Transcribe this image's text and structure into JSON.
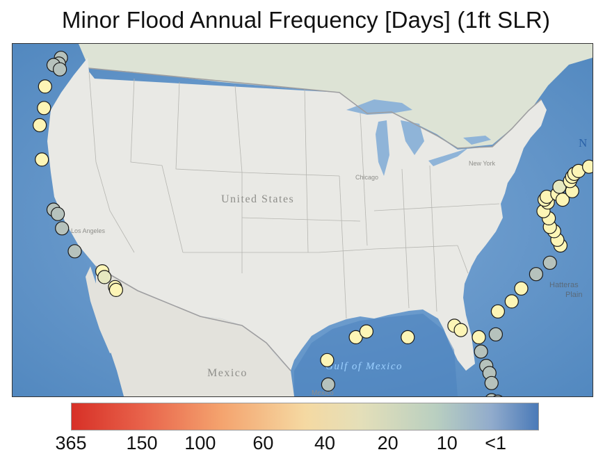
{
  "title": "Minor Flood Annual Frequency [Days] (1ft SLR)",
  "map_labels": {
    "country_us": "United States",
    "country_mx": "Mexico",
    "gulf": "Gulf of Mexico",
    "plain_1": "Hatteras",
    "plain_2": "Plain",
    "city": "Chicago",
    "ocean_letter": "N",
    "mexico_bottom": "Mexico",
    "los_angeles": "Los Angeles",
    "new_york": "New York"
  },
  "legend": {
    "ticks": [
      "365",
      "150",
      "100",
      "60",
      "40",
      "20",
      "10",
      "<1"
    ]
  },
  "colors": {
    "high": "#fdf5b6",
    "mid": "#e6e8c0",
    "low": "#b6c2bc",
    "ocean": "#5f94c9",
    "land": "#e8e8e4"
  },
  "stations": [
    {
      "lon": -122.4,
      "lat": 48.9,
      "cls": "low"
    },
    {
      "lon": -122.6,
      "lat": 48.5,
      "cls": "low"
    },
    {
      "lon": -123.1,
      "lat": 48.4,
      "cls": "low"
    },
    {
      "lon": -122.5,
      "lat": 48.1,
      "cls": "low"
    },
    {
      "lon": -123.9,
      "lat": 46.9,
      "cls": "high"
    },
    {
      "lon": -124.0,
      "lat": 45.4,
      "cls": "high"
    },
    {
      "lon": -124.4,
      "lat": 44.2,
      "cls": "high"
    },
    {
      "lon": -124.2,
      "lat": 41.8,
      "cls": "high"
    },
    {
      "lon": -123.1,
      "lat": 38.3,
      "cls": "low"
    },
    {
      "lon": -122.7,
      "lat": 38.0,
      "cls": "low"
    },
    {
      "lon": -122.3,
      "lat": 37.0,
      "cls": "low"
    },
    {
      "lon": -121.1,
      "lat": 35.4,
      "cls": "low"
    },
    {
      "lon": -118.5,
      "lat": 34.0,
      "cls": "high"
    },
    {
      "lon": -118.3,
      "lat": 33.6,
      "cls": "mid"
    },
    {
      "lon": -117.3,
      "lat": 32.9,
      "cls": "high"
    },
    {
      "lon": -117.2,
      "lat": 32.7,
      "cls": "high"
    },
    {
      "lon": -97.3,
      "lat": 27.8,
      "cls": "high"
    },
    {
      "lon": -97.2,
      "lat": 26.1,
      "cls": "low"
    },
    {
      "lon": -94.6,
      "lat": 29.4,
      "cls": "high"
    },
    {
      "lon": -93.6,
      "lat": 29.8,
      "cls": "high"
    },
    {
      "lon": -89.7,
      "lat": 29.4,
      "cls": "high"
    },
    {
      "lon": -85.3,
      "lat": 30.2,
      "cls": "high"
    },
    {
      "lon": -84.7,
      "lat": 29.9,
      "cls": "high"
    },
    {
      "lon": -83.0,
      "lat": 29.4,
      "cls": "high"
    },
    {
      "lon": -82.8,
      "lat": 28.4,
      "cls": "low"
    },
    {
      "lon": -82.3,
      "lat": 27.4,
      "cls": "low"
    },
    {
      "lon": -82.0,
      "lat": 26.9,
      "cls": "low"
    },
    {
      "lon": -81.8,
      "lat": 26.2,
      "cls": "low"
    },
    {
      "lon": -81.8,
      "lat": 25.0,
      "cls": "low"
    },
    {
      "lon": -81.2,
      "lat": 24.9,
      "cls": "low"
    },
    {
      "lon": -81.4,
      "lat": 29.6,
      "cls": "low"
    },
    {
      "lon": -81.2,
      "lat": 31.2,
      "cls": "high"
    },
    {
      "lon": -79.9,
      "lat": 31.9,
      "cls": "high"
    },
    {
      "lon": -79.0,
      "lat": 32.8,
      "cls": "high"
    },
    {
      "lon": -77.6,
      "lat": 33.8,
      "cls": "low"
    },
    {
      "lon": -76.3,
      "lat": 34.6,
      "cls": "low"
    },
    {
      "lon": -75.3,
      "lat": 35.8,
      "cls": "high"
    },
    {
      "lon": -75.6,
      "lat": 36.2,
      "cls": "high"
    },
    {
      "lon": -75.9,
      "lat": 36.8,
      "cls": "high"
    },
    {
      "lon": -76.3,
      "lat": 37.1,
      "cls": "high"
    },
    {
      "lon": -76.4,
      "lat": 37.7,
      "cls": "high"
    },
    {
      "lon": -76.9,
      "lat": 38.2,
      "cls": "high"
    },
    {
      "lon": -76.5,
      "lat": 38.8,
      "cls": "high"
    },
    {
      "lon": -76.8,
      "lat": 39.0,
      "cls": "high"
    },
    {
      "lon": -76.6,
      "lat": 39.2,
      "cls": "high"
    },
    {
      "lon": -75.6,
      "lat": 39.4,
      "cls": "high"
    },
    {
      "lon": -75.1,
      "lat": 39.0,
      "cls": "high"
    },
    {
      "lon": -75.4,
      "lat": 39.9,
      "cls": "mid"
    },
    {
      "lon": -74.2,
      "lat": 39.6,
      "cls": "high"
    },
    {
      "lon": -74.4,
      "lat": 40.3,
      "cls": "high"
    },
    {
      "lon": -74.2,
      "lat": 40.6,
      "cls": "high"
    },
    {
      "lon": -74.0,
      "lat": 40.8,
      "cls": "high"
    },
    {
      "lon": -73.6,
      "lat": 41.0,
      "cls": "high"
    },
    {
      "lon": -72.6,
      "lat": 41.3,
      "cls": "high"
    },
    {
      "lon": -71.6,
      "lat": 41.4,
      "cls": "high"
    },
    {
      "lon": -70.9,
      "lat": 41.6,
      "cls": "high"
    },
    {
      "lon": -70.6,
      "lat": 41.9,
      "cls": "high"
    },
    {
      "lon": -71.0,
      "lat": 42.3,
      "cls": "high"
    },
    {
      "lon": -70.0,
      "lat": 41.9,
      "cls": "low"
    },
    {
      "lon": -70.7,
      "lat": 42.9,
      "cls": "high"
    },
    {
      "lon": -70.3,
      "lat": 43.6,
      "cls": "high"
    },
    {
      "lon": -68.9,
      "lat": 44.6,
      "cls": "high"
    }
  ]
}
